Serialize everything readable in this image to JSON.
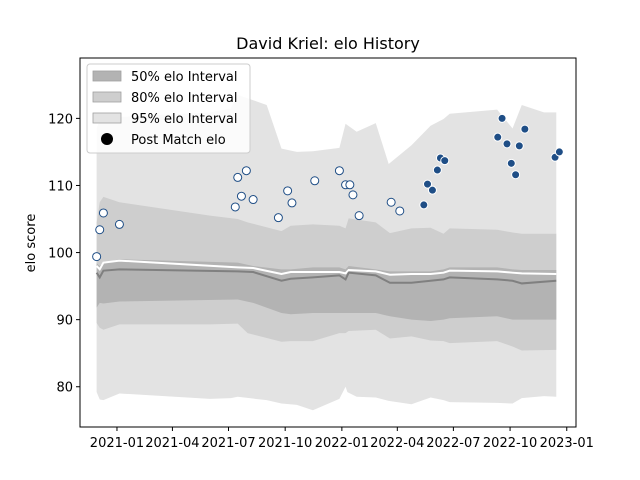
{
  "chart_data": {
    "type": "line",
    "title": "David Kriel: elo History",
    "xlabel": "",
    "ylabel": "elo score",
    "xlim": [
      "2020-11-02",
      "2023-01-16"
    ],
    "ylim": [
      74,
      129
    ],
    "x_ticks": [
      "2021-01",
      "2021-04",
      "2021-07",
      "2021-10",
      "2022-01",
      "2022-04",
      "2022-07",
      "2022-10",
      "2023-01"
    ],
    "x_tick_dates": [
      "2021-01-01",
      "2021-04-01",
      "2021-07-01",
      "2021-10-01",
      "2022-01-01",
      "2022-04-01",
      "2022-07-01",
      "2022-10-01",
      "2023-01-01"
    ],
    "y_ticks": [
      80,
      90,
      100,
      110,
      120
    ],
    "legend": {
      "placement": "upper-left",
      "entries": [
        "50% elo Interval",
        "80% elo Interval",
        "95% elo Interval",
        "Post Match elo"
      ]
    },
    "colors": {
      "band_50": "#b3b3b3",
      "band_80": "#cecece",
      "band_95": "#e3e3e3",
      "mean_line": "#ffffff",
      "median_line": "#808080",
      "point_old": "#ffffff",
      "point_new": "#1f4e86",
      "point_edge": "#1f4e86"
    },
    "series": [
      {
        "name": "95% elo Interval",
        "kind": "band",
        "x": [
          "2020-11-29",
          "2020-12-04",
          "2020-12-10",
          "2021-01-05",
          "2021-06-01",
          "2021-07-05",
          "2021-07-16",
          "2021-09-01",
          "2021-09-25",
          "2021-10-20",
          "2021-11-15",
          "2021-12-28",
          "2022-01-07",
          "2022-01-10",
          "2022-01-25",
          "2022-02-25",
          "2022-03-18",
          "2022-04-24",
          "2022-05-25",
          "2022-06-15",
          "2022-06-25",
          "2022-09-10",
          "2022-10-05",
          "2022-10-20",
          "2022-11-25",
          "2022-12-15"
        ],
        "upper": [
          118.5,
          119.8,
          119.9,
          120.2,
          120.9,
          121.5,
          123.5,
          122.0,
          115.5,
          115.0,
          115.1,
          115.6,
          119.2,
          119.0,
          118.0,
          119.3,
          113.2,
          116.0,
          118.9,
          119.9,
          120.7,
          121.3,
          118.5,
          122.0,
          120.9,
          120.9
        ],
        "lower": [
          79.2,
          78.1,
          78.0,
          79.0,
          78.2,
          78.3,
          78.5,
          78.0,
          77.5,
          77.3,
          76.5,
          78.2,
          80.0,
          79.2,
          78.5,
          78.4,
          77.9,
          77.4,
          78.4,
          78.0,
          77.7,
          77.6,
          77.5,
          78.3,
          78.6,
          78.5
        ]
      },
      {
        "name": "80% elo Interval",
        "kind": "band",
        "x": [
          "2020-11-29",
          "2020-12-04",
          "2020-12-10",
          "2021-01-05",
          "2021-06-01",
          "2021-07-16",
          "2021-08-01",
          "2021-09-25",
          "2021-10-10",
          "2021-11-15",
          "2021-12-28",
          "2022-01-07",
          "2022-01-12",
          "2022-02-25",
          "2022-03-20",
          "2022-04-24",
          "2022-05-25",
          "2022-06-15",
          "2022-06-25",
          "2022-09-10",
          "2022-10-05",
          "2022-10-20",
          "2022-12-15"
        ],
        "upper": [
          104.5,
          107.5,
          108.3,
          107.5,
          105.5,
          105.0,
          104.5,
          103.2,
          104.0,
          104.2,
          104.0,
          103.6,
          105.1,
          104.5,
          102.9,
          103.6,
          103.7,
          102.8,
          103.6,
          103.4,
          103.0,
          102.8,
          102.8
        ],
        "lower": [
          89.5,
          88.8,
          88.5,
          89.3,
          89.3,
          89.4,
          88.0,
          86.7,
          86.8,
          86.8,
          88.0,
          88.0,
          88.3,
          88.5,
          87.2,
          87.5,
          86.9,
          86.8,
          86.5,
          86.8,
          86.0,
          85.4,
          85.5
        ]
      },
      {
        "name": "50% elo Interval",
        "kind": "band",
        "x": [
          "2020-11-29",
          "2020-12-04",
          "2020-12-10",
          "2021-01-05",
          "2021-07-16",
          "2021-08-10",
          "2021-09-25",
          "2021-10-10",
          "2021-11-15",
          "2021-12-28",
          "2022-01-07",
          "2022-01-12",
          "2022-02-25",
          "2022-03-20",
          "2022-04-24",
          "2022-05-25",
          "2022-06-15",
          "2022-06-25",
          "2022-09-10",
          "2022-10-05",
          "2022-10-20",
          "2022-12-15"
        ],
        "upper": [
          98.4,
          98.0,
          98.5,
          99.0,
          98.5,
          98.0,
          97.5,
          97.5,
          97.8,
          97.8,
          97.5,
          98.0,
          97.5,
          97.2,
          97.2,
          97.2,
          97.5,
          97.8,
          97.8,
          97.5,
          97.4,
          97.4
        ],
        "lower": [
          91.8,
          92.5,
          92.4,
          92.7,
          93.0,
          92.5,
          91.0,
          90.8,
          91.0,
          91.0,
          91.0,
          91.0,
          91.0,
          90.5,
          90.0,
          89.8,
          90.0,
          90.2,
          90.5,
          90.0,
          90.0,
          90.0
        ]
      },
      {
        "name": "",
        "kind": "line",
        "color": "#ffffff",
        "x": [
          "2020-11-29",
          "2020-12-04",
          "2020-12-10",
          "2021-01-05",
          "2021-07-16",
          "2021-08-10",
          "2021-09-25",
          "2021-10-10",
          "2021-12-28",
          "2022-01-07",
          "2022-01-12",
          "2022-02-25",
          "2022-03-20",
          "2022-04-24",
          "2022-05-25",
          "2022-06-15",
          "2022-06-25",
          "2022-09-10",
          "2022-10-05",
          "2022-10-20",
          "2022-12-15"
        ],
        "y": [
          98.0,
          97.5,
          98.5,
          98.8,
          97.8,
          97.7,
          96.8,
          97.1,
          97.1,
          96.9,
          97.4,
          97.2,
          96.7,
          96.8,
          96.8,
          97.0,
          97.3,
          97.2,
          97.0,
          96.9,
          96.8
        ]
      },
      {
        "name": "",
        "kind": "line",
        "color": "#808080",
        "x": [
          "2020-11-29",
          "2020-12-04",
          "2020-12-10",
          "2021-01-05",
          "2021-07-16",
          "2021-08-10",
          "2021-09-25",
          "2021-10-10",
          "2021-11-15",
          "2021-12-28",
          "2022-01-07",
          "2022-01-12",
          "2022-02-25",
          "2022-03-20",
          "2022-04-24",
          "2022-05-25",
          "2022-06-15",
          "2022-06-25",
          "2022-09-10",
          "2022-10-05",
          "2022-10-20",
          "2022-12-15"
        ],
        "y": [
          97.0,
          96.3,
          97.3,
          97.5,
          97.2,
          97.1,
          95.8,
          96.1,
          96.3,
          96.6,
          96.0,
          97.0,
          96.6,
          95.5,
          95.5,
          95.8,
          96.0,
          96.3,
          96.0,
          95.8,
          95.4,
          95.8
        ]
      },
      {
        "name": "Post Match elo",
        "kind": "scatter",
        "points": [
          [
            "2020-11-29",
            99.4
          ],
          [
            "2020-12-04",
            103.4
          ],
          [
            "2020-12-10",
            105.9
          ],
          [
            "2021-01-05",
            104.2
          ],
          [
            "2021-07-12",
            106.8
          ],
          [
            "2021-07-16",
            111.2
          ],
          [
            "2021-07-22",
            108.4
          ],
          [
            "2021-07-30",
            112.2
          ],
          [
            "2021-08-10",
            107.9
          ],
          [
            "2021-09-20",
            105.2
          ],
          [
            "2021-10-05",
            109.2
          ],
          [
            "2021-10-12",
            107.4
          ],
          [
            "2021-11-18",
            110.7
          ],
          [
            "2021-12-28",
            112.2
          ],
          [
            "2022-01-07",
            110.1
          ],
          [
            "2022-01-14",
            110.1
          ],
          [
            "2022-01-19",
            108.6
          ],
          [
            "2022-01-29",
            105.5
          ],
          [
            "2022-03-22",
            107.5
          ],
          [
            "2022-04-05",
            106.2
          ],
          [
            "2022-05-14",
            107.1
          ],
          [
            "2022-05-20",
            110.2
          ],
          [
            "2022-05-28",
            109.3
          ],
          [
            "2022-06-05",
            112.3
          ],
          [
            "2022-06-10",
            114.1
          ],
          [
            "2022-06-17",
            113.7
          ],
          [
            "2022-09-11",
            117.2
          ],
          [
            "2022-09-18",
            120.0
          ],
          [
            "2022-09-26",
            116.2
          ],
          [
            "2022-10-03",
            113.3
          ],
          [
            "2022-10-10",
            111.6
          ],
          [
            "2022-10-16",
            115.9
          ],
          [
            "2022-10-25",
            118.4
          ],
          [
            "2022-12-13",
            114.2
          ],
          [
            "2022-12-20",
            115.0
          ]
        ],
        "new_from_index": 20
      }
    ]
  }
}
